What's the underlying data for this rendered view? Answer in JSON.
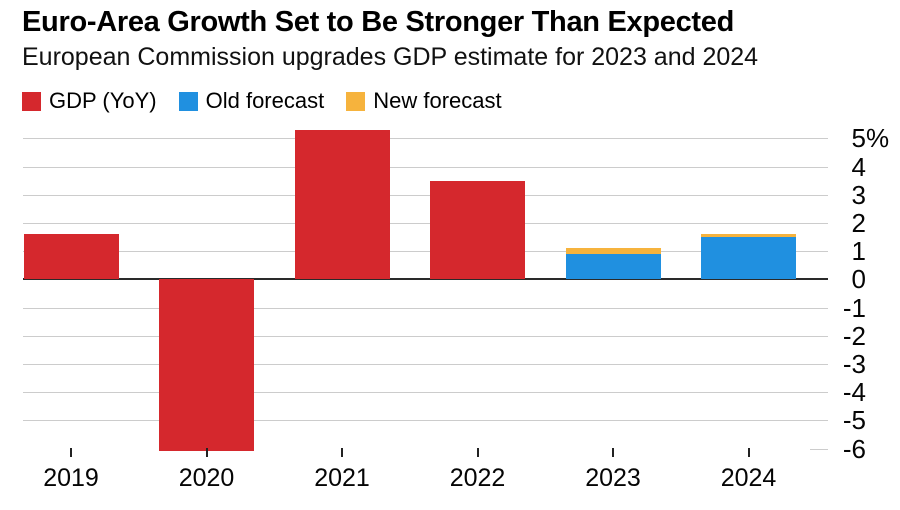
{
  "header": {
    "title": "Euro-Area Growth Set to Be Stronger Than Expected",
    "subtitle": "European Commission upgrades GDP estimate for 2023 and 2024"
  },
  "legend": [
    {
      "label": "GDP (YoY)",
      "color": "#d5282d",
      "swatch_icon": "red-square-swatch"
    },
    {
      "label": "Old forecast",
      "color": "#2090e0",
      "swatch_icon": "blue-square-swatch"
    },
    {
      "label": "New forecast",
      "color": "#f6b33d",
      "swatch_icon": "yellow-square-swatch"
    }
  ],
  "chart_data": {
    "type": "bar",
    "title": "Euro-Area Growth Set to Be Stronger Than Expected",
    "subtitle": "European Commission upgrades GDP estimate for 2023 and 2024",
    "categories": [
      "2019",
      "2020",
      "2021",
      "2022",
      "2023",
      "2024"
    ],
    "series": [
      {
        "name": "GDP (YoY)",
        "color": "#d5282d",
        "values": [
          1.6,
          -6.1,
          5.3,
          3.5,
          null,
          null
        ]
      },
      {
        "name": "Old forecast",
        "color": "#2090e0",
        "values": [
          null,
          null,
          null,
          null,
          0.9,
          1.5
        ]
      },
      {
        "name": "New forecast",
        "color": "#f6b33d",
        "values": [
          null,
          null,
          null,
          null,
          1.1,
          1.6
        ]
      }
    ],
    "xlabel": "",
    "ylabel": "",
    "ylim": [
      -6.3,
      5.4
    ],
    "y_tick_labels": [
      "5%",
      "4",
      "3",
      "2",
      "1",
      "0",
      "-1",
      "-2",
      "-3",
      "-4",
      "-5",
      "-6"
    ],
    "grid": true,
    "legend_position": "top-left",
    "forecast_note": "New forecast drawn as cap above old forecast on stacked bar"
  },
  "colors": {
    "gdp": "#d5282d",
    "old_forecast": "#2090e0",
    "new_forecast": "#f6b33d",
    "gridline": "#cccccc",
    "zero_axis": "#2a2a2a",
    "text": "#000000",
    "background": "#ffffff"
  }
}
